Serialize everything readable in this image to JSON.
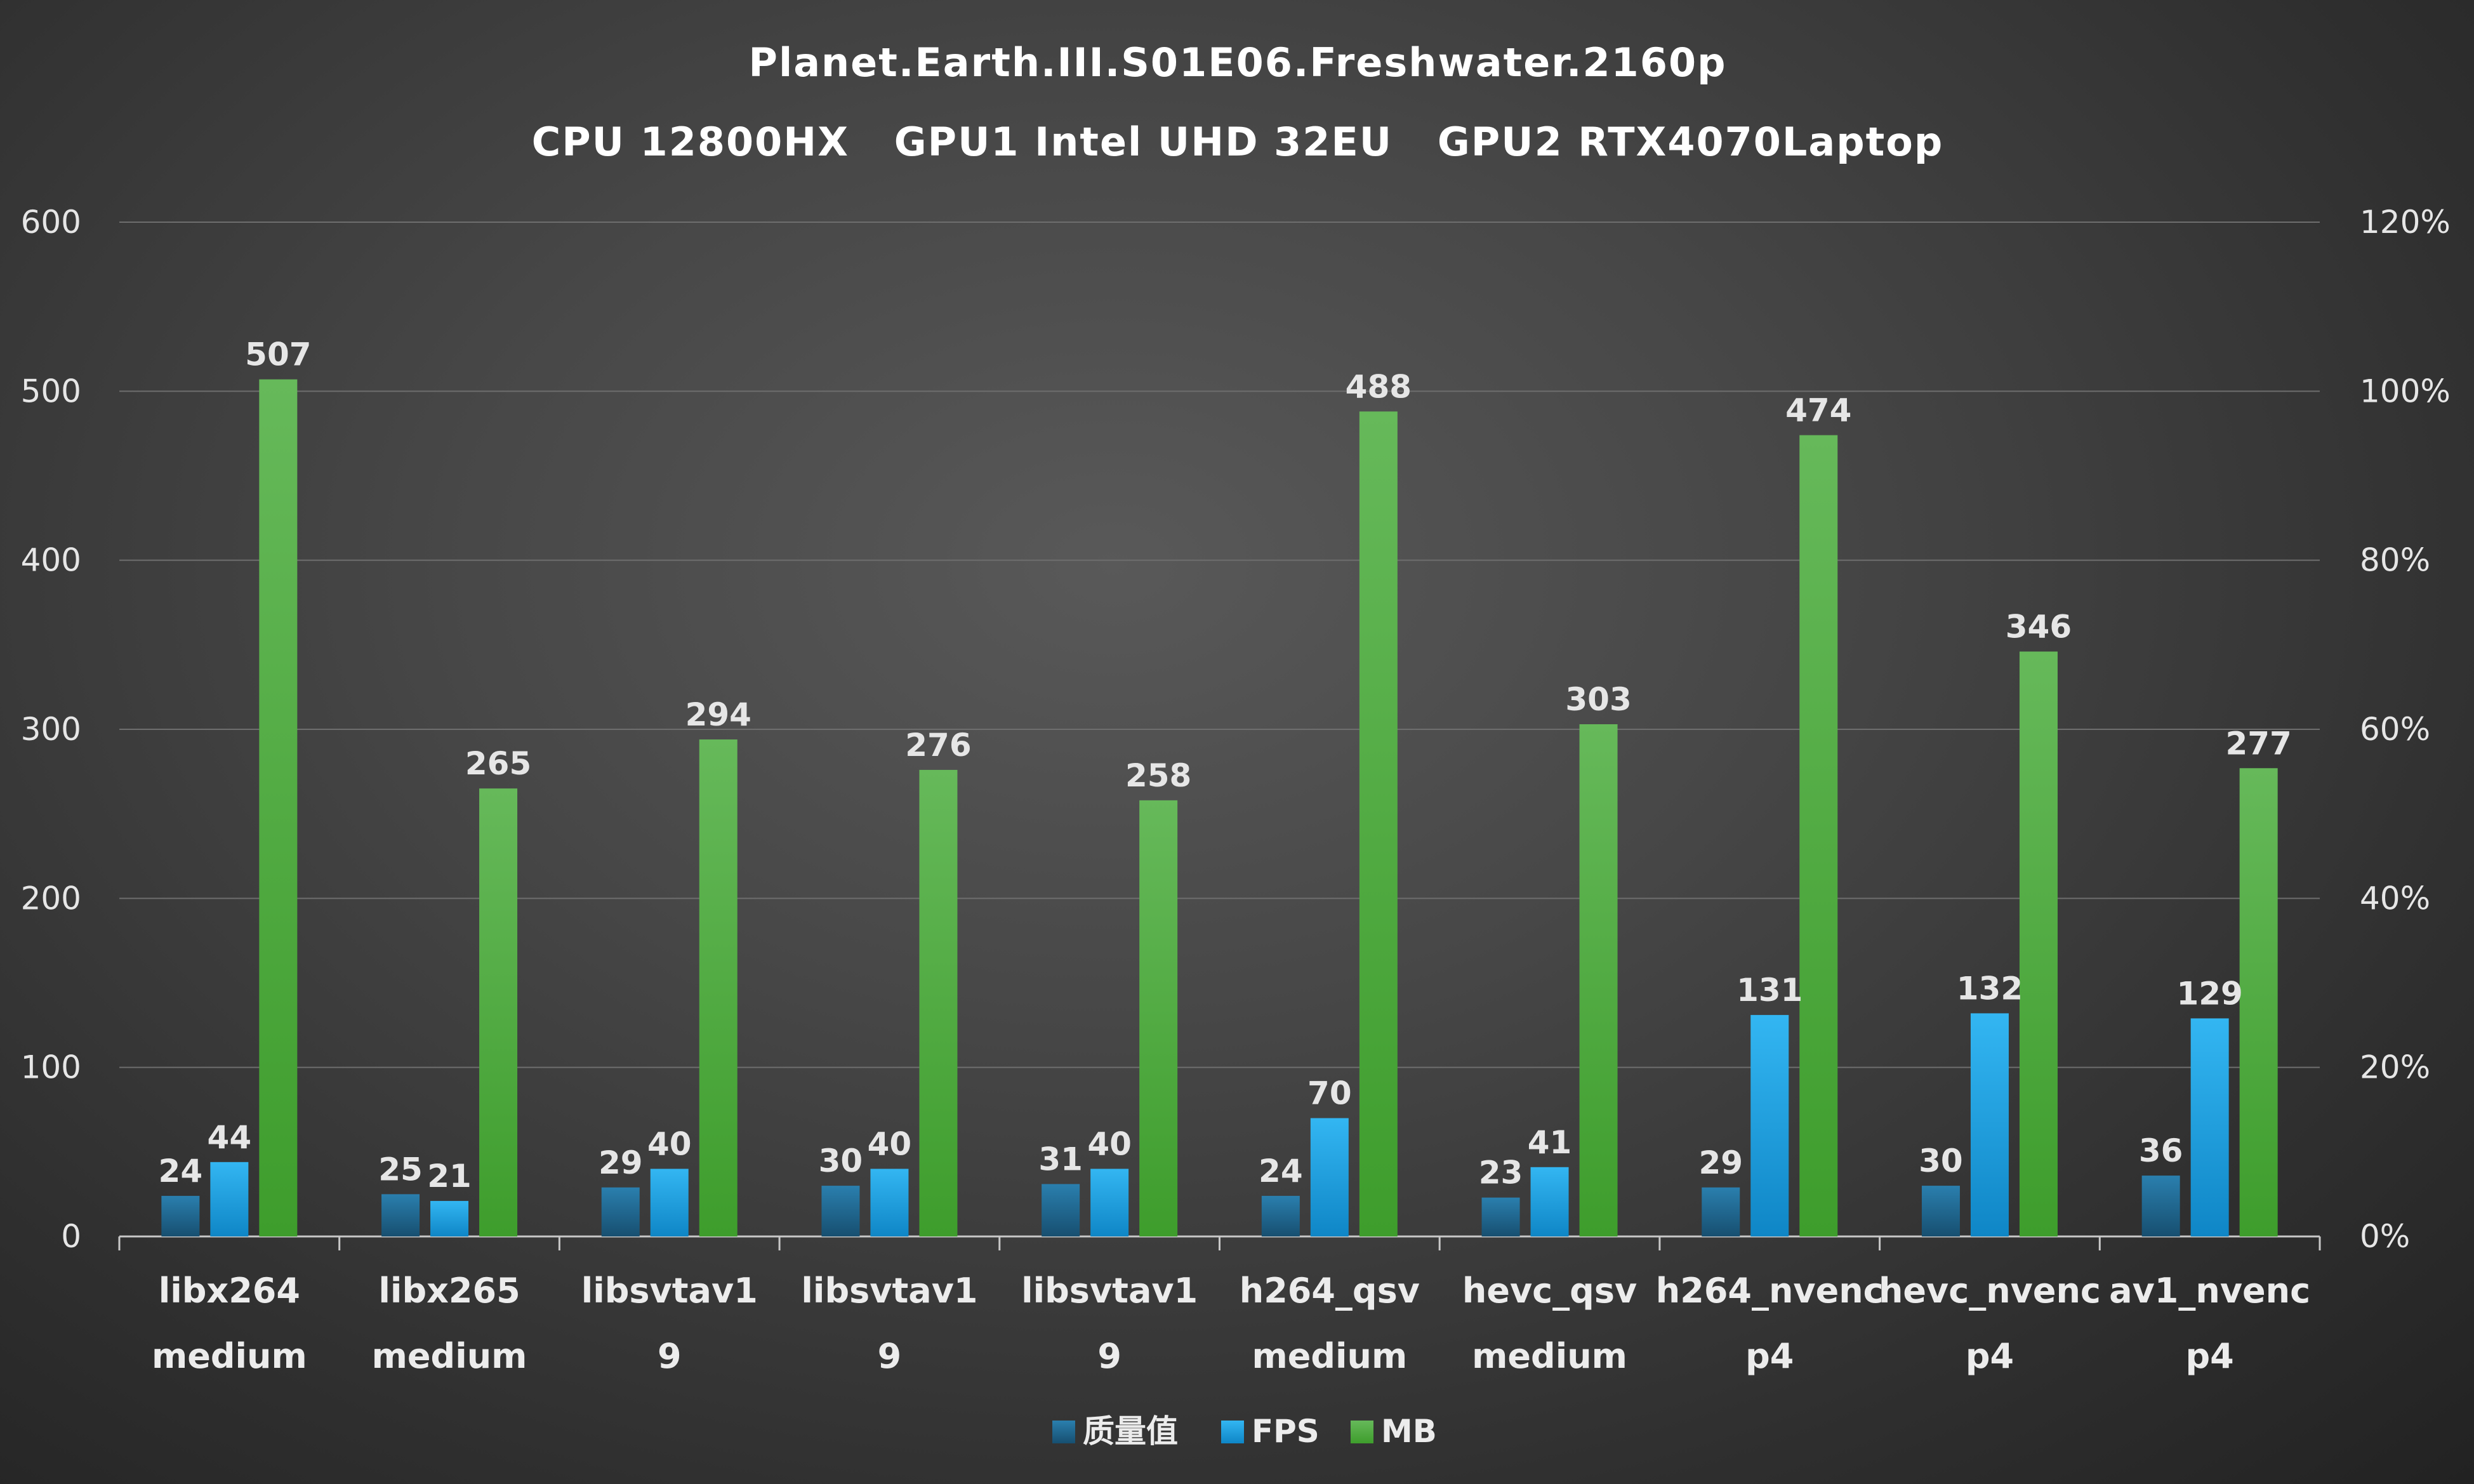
{
  "chart_data": {
    "type": "bar",
    "title": "Planet.Earth.III.S01E06.Freshwater.2160p",
    "subtitle": "CPU 12800HX   GPU1 Intel UHD 32EU   GPU2 RTX4070Laptop",
    "categories": [
      [
        "libx264",
        "medium"
      ],
      [
        "libx265",
        "medium"
      ],
      [
        "libsvtav1",
        "9"
      ],
      [
        "libsvtav1",
        "9"
      ],
      [
        "libsvtav1",
        "9"
      ],
      [
        "h264_qsv",
        "medium"
      ],
      [
        "hevc_qsv",
        "medium"
      ],
      [
        "h264_nvenc",
        "p4"
      ],
      [
        "hevc_nvenc",
        "p4"
      ],
      [
        "av1_nvenc",
        "p4"
      ]
    ],
    "series": [
      {
        "name": "质量值",
        "color": "#1f6f9a",
        "values": [
          24,
          25,
          29,
          30,
          31,
          24,
          23,
          29,
          30,
          36
        ]
      },
      {
        "name": "FPS",
        "color": "#1aa3e8",
        "values": [
          44,
          21,
          40,
          40,
          40,
          70,
          41,
          131,
          132,
          129
        ]
      },
      {
        "name": "MB",
        "color": "#4caf3a",
        "values": [
          507,
          265,
          294,
          276,
          258,
          488,
          303,
          474,
          346,
          277
        ]
      }
    ],
    "ylim": [
      0,
      600
    ],
    "yticks": [
      "0",
      "100",
      "200",
      "300",
      "400",
      "500",
      "600"
    ],
    "y2ticks": [
      "0%",
      "20%",
      "40%",
      "60%",
      "80%",
      "100%",
      "120%"
    ],
    "grid": true,
    "legend": "bottom-center"
  }
}
